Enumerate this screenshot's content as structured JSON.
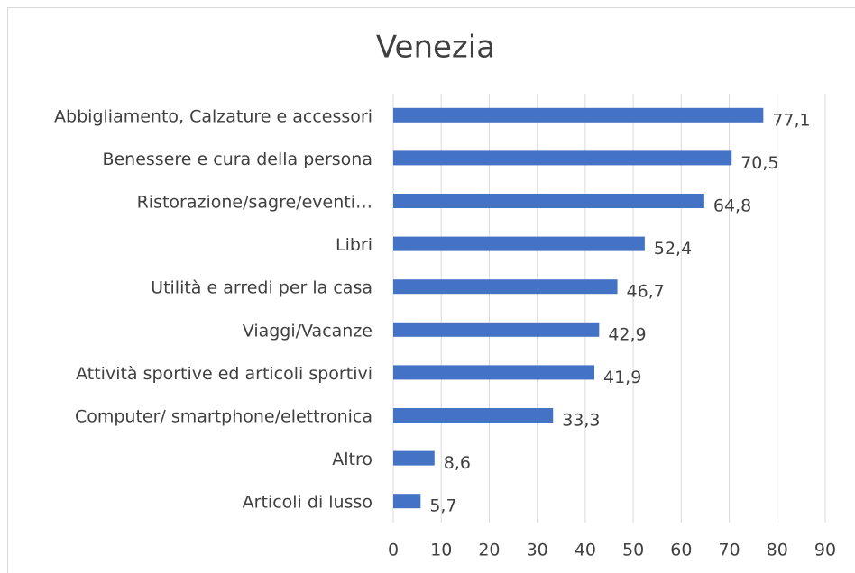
{
  "chart_data": {
    "type": "bar",
    "orientation": "horizontal",
    "title": "Venezia",
    "categories": [
      "Abbigliamento, Calzature e accessori",
      "Benessere e cura della persona",
      "Ristorazione/sagre/eventi…",
      "Libri",
      "Utilità e arredi per la casa",
      "Viaggi/Vacanze",
      "Attività sportive ed articoli sportivi",
      "Computer/ smartphone/elettronica",
      "Altro",
      "Articoli di lusso"
    ],
    "values": [
      77.1,
      70.5,
      64.8,
      52.4,
      46.7,
      42.9,
      41.9,
      33.3,
      8.6,
      5.7
    ],
    "value_labels": [
      "77,1",
      "70,5",
      "64,8",
      "52,4",
      "46,7",
      "42,9",
      "41,9",
      "33,3",
      "8,6",
      "5,7"
    ],
    "color": "#4472c4",
    "xlim": [
      0,
      90
    ],
    "xticks": [
      0,
      10,
      20,
      30,
      40,
      50,
      60,
      70,
      80,
      90
    ],
    "grid": true
  }
}
